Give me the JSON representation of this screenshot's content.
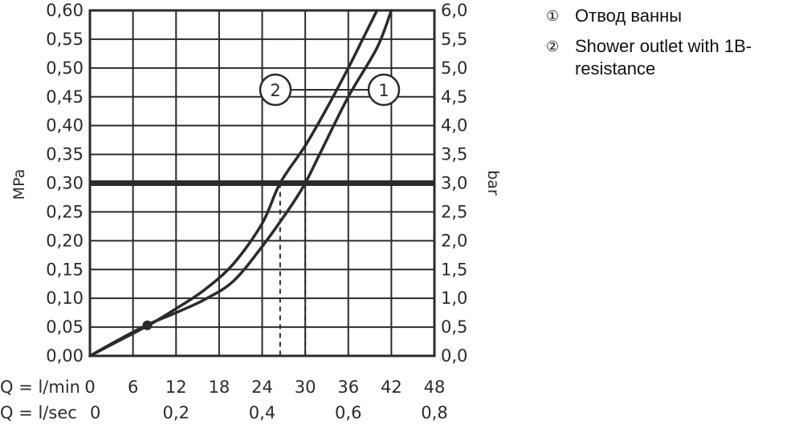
{
  "chart_data": {
    "type": "line",
    "left_axis": {
      "label": "MPa",
      "ylim": [
        0,
        0.6
      ],
      "ticks": [
        "0,00",
        "0,05",
        "0,10",
        "0,15",
        "0,20",
        "0,25",
        "0,30",
        "0,35",
        "0,40",
        "0,45",
        "0,50",
        "0,55",
        "0,60"
      ]
    },
    "right_axis": {
      "label": "bar",
      "ylim": [
        0,
        6
      ],
      "ticks": [
        "0,0",
        "0,5",
        "1,0",
        "1,5",
        "2,0",
        "2,5",
        "3,0",
        "3,5",
        "4,0",
        "4,5",
        "5,0",
        "5,5",
        "6,0"
      ]
    },
    "x_axis": {
      "label": "Q = l/min",
      "xlim": [
        0,
        48
      ],
      "ticks": [
        "0",
        "6",
        "12",
        "18",
        "24",
        "30",
        "36",
        "42",
        "48"
      ],
      "secondary_label": "Q = l/sec",
      "secondary_ticks": [
        "0",
        "0,2",
        "0,4",
        "0,6",
        "0,8"
      ]
    },
    "grid": true,
    "reference_line": {
      "y": 0.3
    },
    "marker": {
      "x": 8,
      "y": 0.053
    },
    "series": [
      {
        "id": "1",
        "x": [
          0,
          4,
          8,
          12,
          16,
          20,
          24,
          28,
          30,
          32,
          36,
          40,
          42
        ],
        "y": [
          0,
          0.028,
          0.054,
          0.075,
          0.098,
          0.13,
          0.19,
          0.26,
          0.3,
          0.35,
          0.45,
          0.535,
          0.6
        ]
      },
      {
        "id": "2",
        "x": [
          0,
          4,
          8,
          12,
          16,
          20,
          24,
          26.5,
          30,
          33,
          36,
          38,
          40
        ],
        "y": [
          0,
          0.026,
          0.052,
          0.082,
          0.115,
          0.16,
          0.23,
          0.3,
          0.365,
          0.43,
          0.5,
          0.55,
          0.6
        ]
      }
    ]
  },
  "legend": [
    {
      "num": "①",
      "label": "Отвод ванны"
    },
    {
      "num": "②",
      "label": "Shower outlet with 1B-resistance"
    }
  ]
}
